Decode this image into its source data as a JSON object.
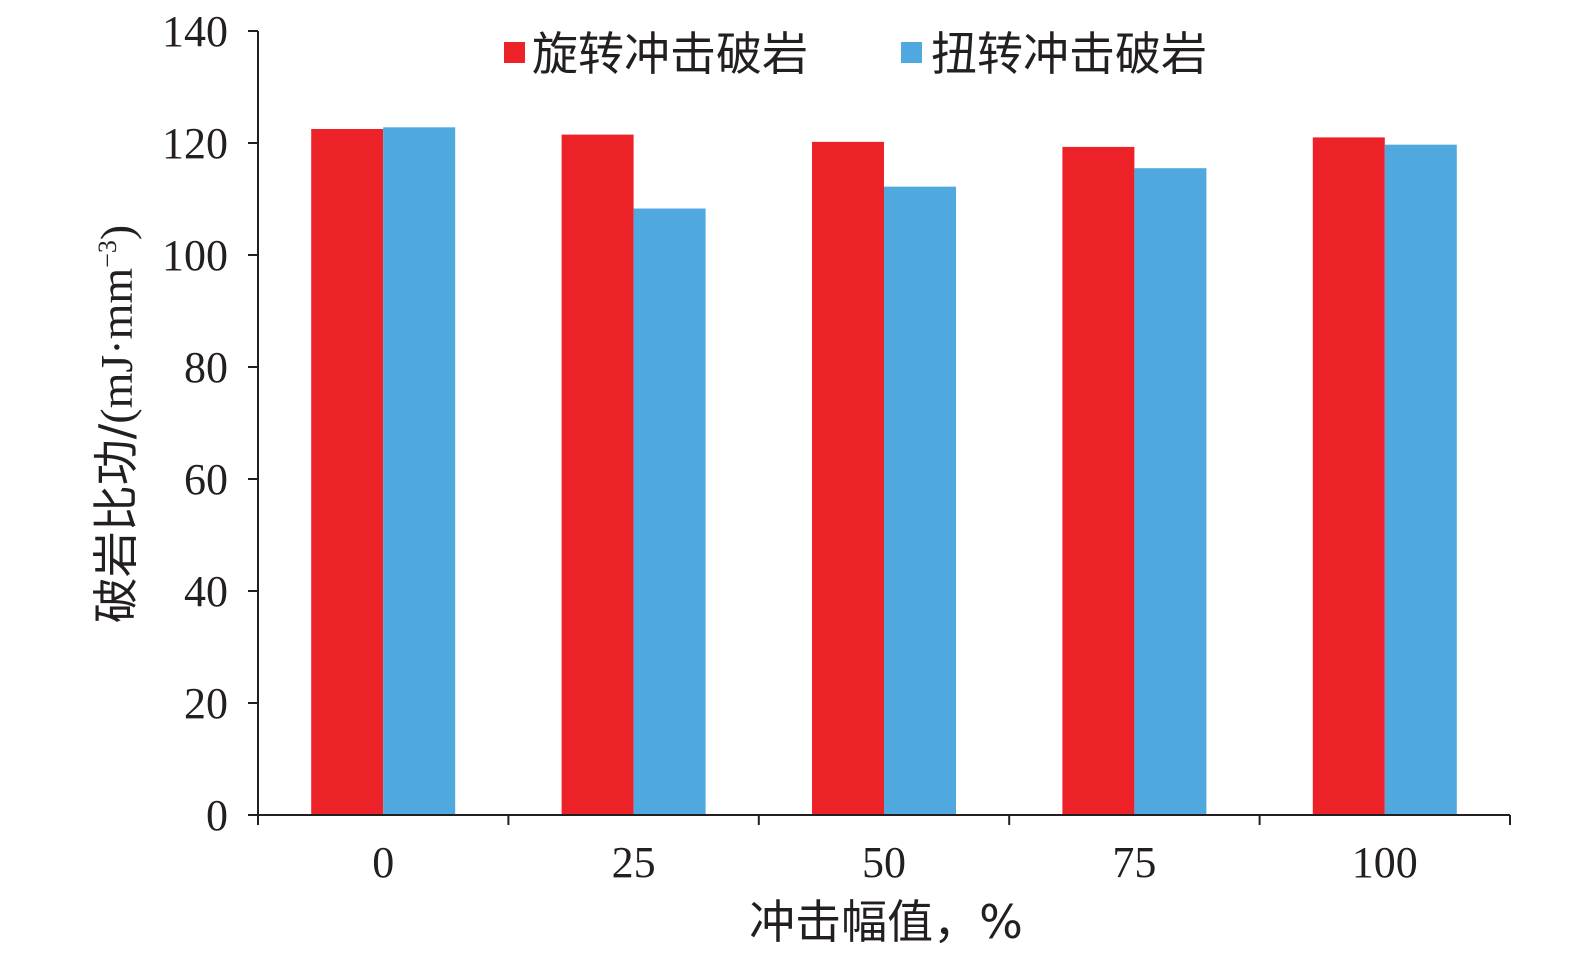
{
  "chart_data": {
    "type": "bar",
    "categories": [
      "0",
      "25",
      "50",
      "75",
      "100"
    ],
    "series": [
      {
        "name": "旋转冲击破岩",
        "color": "#ed2229",
        "values": [
          122.5,
          121.5,
          120.2,
          119.3,
          121.0
        ]
      },
      {
        "name": "扭转冲击破岩",
        "color": "#4fa9de",
        "values": [
          122.8,
          108.3,
          112.2,
          115.5,
          119.7
        ]
      }
    ],
    "title": "",
    "xlabel": "冲击幅值，%",
    "ylabel_main": "破岩比功/",
    "ylabel_unit": "(mJ·mm",
    "ylabel_sup": "−3",
    "ylabel_close": ")",
    "ylim": [
      0,
      140
    ],
    "yticks": [
      "0",
      "20",
      "40",
      "60",
      "80",
      "100",
      "120",
      "140"
    ],
    "legend_position": "top",
    "grid": false
  }
}
